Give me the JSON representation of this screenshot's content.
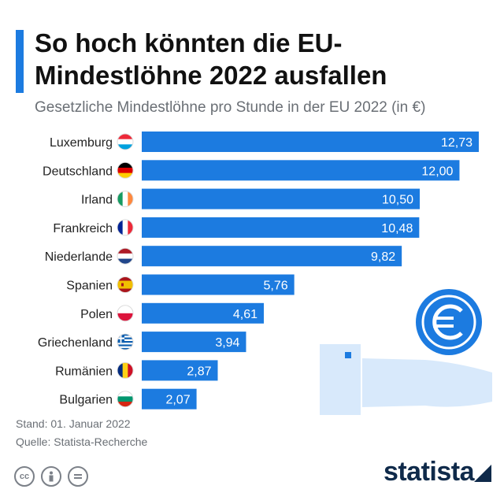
{
  "header": {
    "title": "So hoch könnten die EU-Mindestlöhne 2022 ausfallen",
    "subtitle": "Gesetzliche Mindestlöhne pro Stunde in der EU 2022 (in €)"
  },
  "footer": {
    "stand": "Stand: 01. Januar 2022",
    "quelle": "Quelle: Statista-Recherche",
    "brand": "statista",
    "license_icons": [
      "creative-commons-icon",
      "attribution-icon",
      "no-derivatives-icon"
    ]
  },
  "colors": {
    "bar": "#1c7be0",
    "accent": "#1c7be0",
    "text": "#222222",
    "muted": "#6a6f75"
  },
  "chart_data": {
    "type": "bar",
    "orientation": "horizontal",
    "title": "So hoch könnten die EU-Mindestlöhne 2022 ausfallen",
    "subtitle": "Gesetzliche Mindestlöhne pro Stunde in der EU 2022 (in €)",
    "categories": [
      "Luxemburg",
      "Deutschland",
      "Irland",
      "Frankreich",
      "Niederlande",
      "Spanien",
      "Polen",
      "Griechenland",
      "Rumänien",
      "Bulgarien"
    ],
    "values": [
      12.73,
      12.0,
      10.5,
      10.48,
      9.82,
      5.76,
      4.61,
      3.94,
      2.87,
      2.07
    ],
    "value_labels": [
      "12,73",
      "12,00",
      "10,50",
      "10,48",
      "9,82",
      "5,76",
      "4,61",
      "3,94",
      "2,87",
      "2,07"
    ],
    "flags": [
      "luxembourg",
      "germany",
      "ireland",
      "france",
      "netherlands",
      "spain",
      "poland",
      "greece",
      "romania",
      "bulgaria"
    ],
    "grid": false,
    "legend": "none"
  }
}
